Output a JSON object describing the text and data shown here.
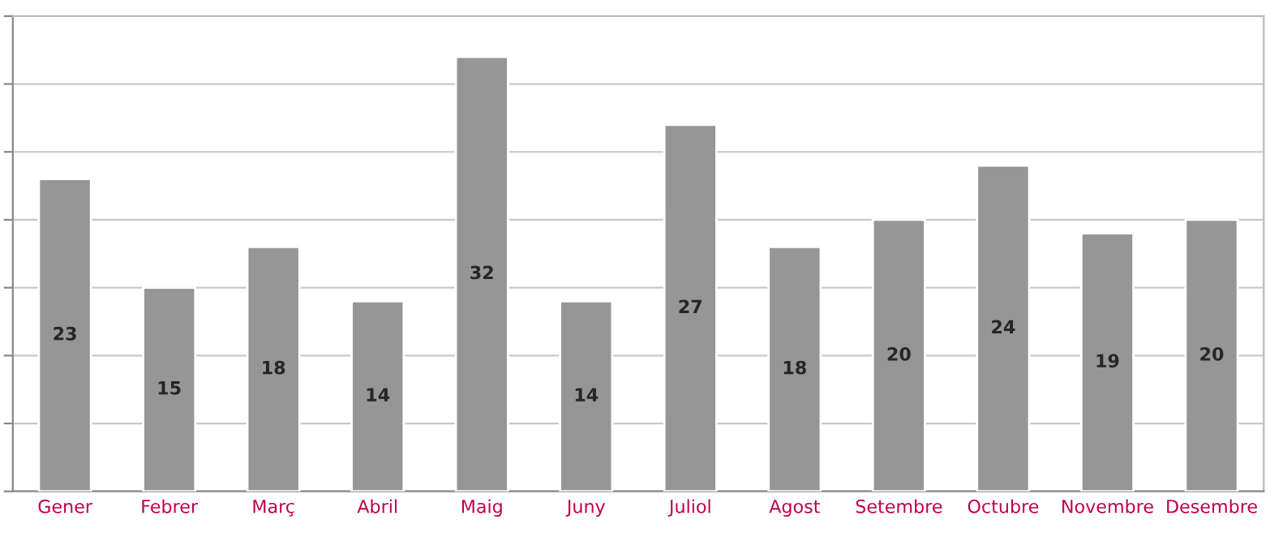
{
  "chart_data": {
    "type": "bar",
    "categories": [
      "Gener",
      "Febrer",
      "Març",
      "Abril",
      "Maig",
      "Juny",
      "Juliol",
      "Agost",
      "Setembre",
      "Octubre",
      "Novembre",
      "Desembre"
    ],
    "values": [
      23,
      15,
      18,
      14,
      32,
      14,
      27,
      18,
      20,
      24,
      19,
      20
    ],
    "color": "#969696",
    "ylim": [
      0,
      35
    ],
    "yticks": [
      {
        "value": 0,
        "label": null
      },
      {
        "value": 5,
        "label": null
      },
      {
        "value": 10,
        "label": null
      },
      {
        "value": 15,
        "label": null
      },
      {
        "value": 20,
        "label": null
      },
      {
        "value": 25,
        "label": null
      },
      {
        "value": 30,
        "label": null
      },
      {
        "value": 35,
        "label": null
      }
    ],
    "tick_labels": "x",
    "grid": "y",
    "data_labels": true
  }
}
